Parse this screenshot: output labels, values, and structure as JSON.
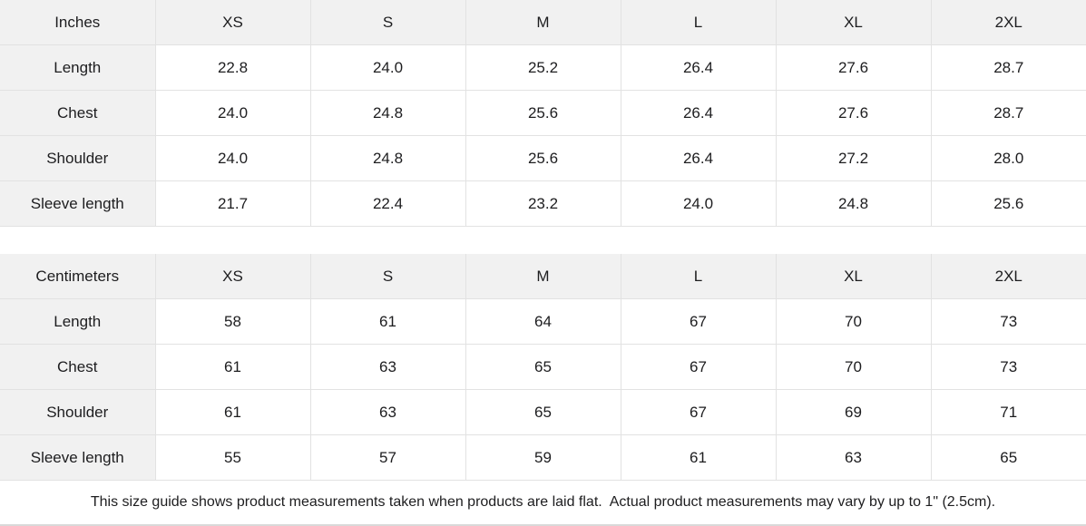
{
  "chart_data": [
    {
      "type": "table",
      "title": "Inches",
      "columns": [
        "Inches",
        "XS",
        "S",
        "M",
        "L",
        "XL",
        "2XL"
      ],
      "row_labels": [
        "Length",
        "Chest",
        "Shoulder",
        "Sleeve length"
      ],
      "rows": [
        [
          "22.8",
          "24.0",
          "25.2",
          "26.4",
          "27.6",
          "28.7"
        ],
        [
          "24.0",
          "24.8",
          "25.6",
          "26.4",
          "27.6",
          "28.7"
        ],
        [
          "24.0",
          "24.8",
          "25.6",
          "26.4",
          "27.2",
          "28.0"
        ],
        [
          "21.7",
          "22.4",
          "23.2",
          "24.0",
          "24.8",
          "25.6"
        ]
      ]
    },
    {
      "type": "table",
      "title": "Centimeters",
      "columns": [
        "Centimeters",
        "XS",
        "S",
        "M",
        "L",
        "XL",
        "2XL"
      ],
      "row_labels": [
        "Length",
        "Chest",
        "Shoulder",
        "Sleeve length"
      ],
      "rows": [
        [
          "58",
          "61",
          "64",
          "67",
          "70",
          "73"
        ],
        [
          "61",
          "63",
          "65",
          "67",
          "70",
          "73"
        ],
        [
          "61",
          "63",
          "65",
          "67",
          "69",
          "71"
        ],
        [
          "55",
          "57",
          "59",
          "61",
          "63",
          "65"
        ]
      ]
    }
  ],
  "footer": {
    "note": "This size guide shows product measurements taken when products are laid flat.  Actual product measurements may vary by up to 1\" (2.5cm)."
  },
  "colors": {
    "header_bg": "#f1f1f1",
    "border": "#e2e2e2",
    "bottom_edge": "#d9d9d9",
    "text": "#1d1d1f",
    "background": "#ffffff"
  }
}
